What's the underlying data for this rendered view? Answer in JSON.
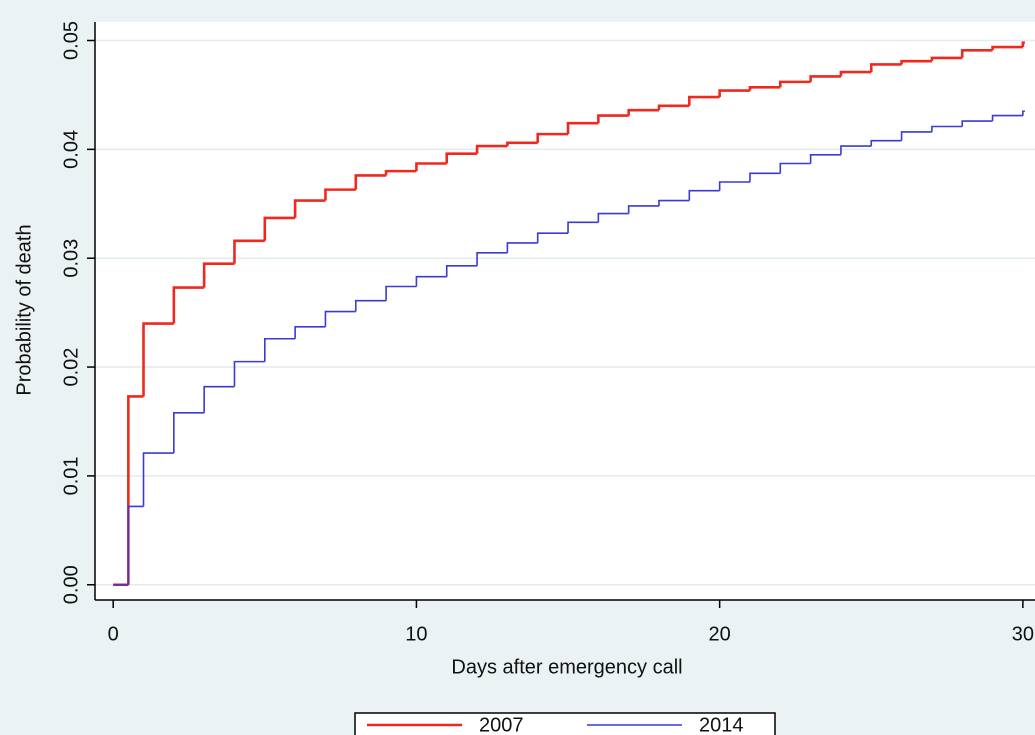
{
  "chart_data": {
    "type": "step",
    "x_label": "Days after emergency call",
    "y_label": "Probability of death",
    "x": [
      0,
      0.5,
      1,
      2,
      3,
      4,
      5,
      6,
      7,
      8,
      9,
      10,
      11,
      12,
      13,
      14,
      15,
      16,
      17,
      18,
      19,
      20,
      21,
      22,
      23,
      24,
      25,
      26,
      27,
      28,
      29,
      30
    ],
    "series": [
      {
        "name": "2007",
        "color": "#ee2a1f",
        "values": [
          0,
          0.0173,
          0.024,
          0.0273,
          0.0295,
          0.0316,
          0.0337,
          0.0353,
          0.0363,
          0.0376,
          0.038,
          0.0387,
          0.0396,
          0.0403,
          0.0406,
          0.0414,
          0.0424,
          0.0431,
          0.0436,
          0.044,
          0.0448,
          0.0454,
          0.0457,
          0.0462,
          0.0467,
          0.0471,
          0.0478,
          0.0481,
          0.0484,
          0.0491,
          0.0494,
          0.0498
        ]
      },
      {
        "name": "2014",
        "color": "#3a3ad6",
        "values": [
          0,
          0.0072,
          0.0121,
          0.0158,
          0.0182,
          0.0205,
          0.0226,
          0.0237,
          0.0251,
          0.0261,
          0.0274,
          0.0283,
          0.0293,
          0.0305,
          0.0314,
          0.0323,
          0.0333,
          0.0341,
          0.0348,
          0.0353,
          0.0362,
          0.037,
          0.0378,
          0.0387,
          0.0395,
          0.0403,
          0.0408,
          0.0416,
          0.0421,
          0.0426,
          0.0431,
          0.0435
        ]
      }
    ],
    "xlim": [
      -0.6,
      30.4
    ],
    "xticks": [
      0,
      10,
      20,
      30
    ],
    "ylim": [
      -0.0014,
      0.0517
    ],
    "yticks": [
      {
        "value": 0,
        "label": "0.00"
      },
      0.01,
      0.02,
      0.03,
      0.04,
      0.05
    ],
    "grid": true,
    "legend": "bottom"
  }
}
